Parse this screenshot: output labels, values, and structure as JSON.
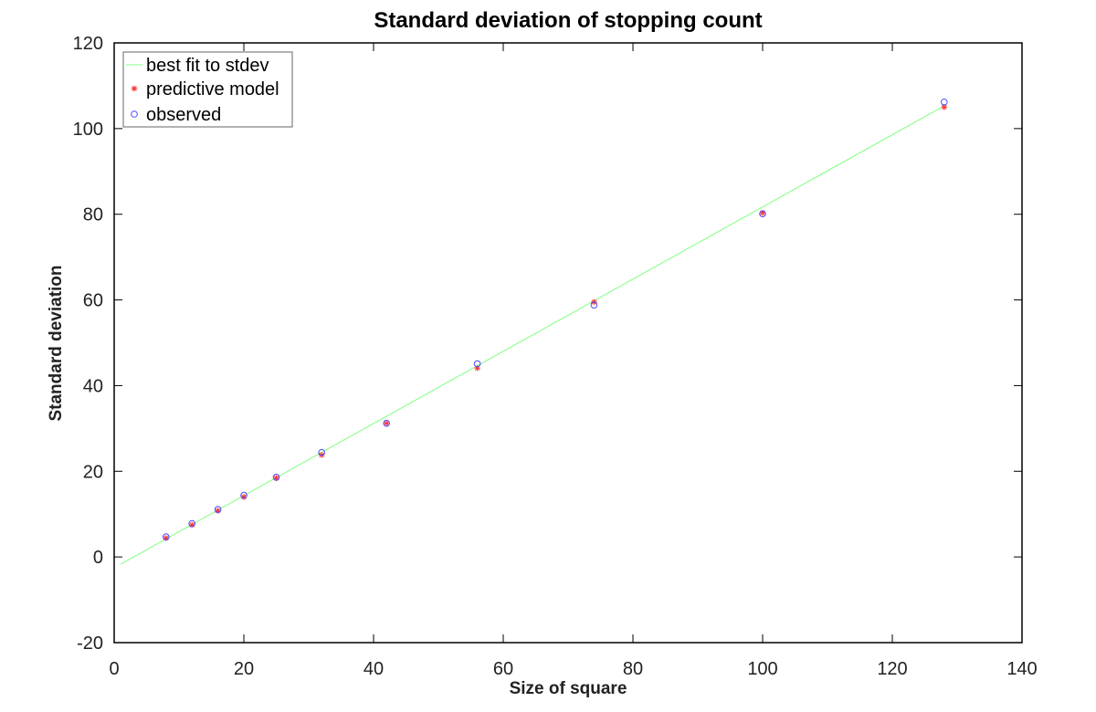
{
  "chart_data": {
    "type": "scatter",
    "title": "Standard deviation of stopping count",
    "xlabel": "Size of square",
    "ylabel": "Standard deviation",
    "xlim": [
      0,
      140
    ],
    "ylim": [
      -20,
      120
    ],
    "xticks": [
      0,
      20,
      40,
      60,
      80,
      100,
      120,
      140
    ],
    "yticks": [
      -20,
      0,
      20,
      40,
      60,
      80,
      100,
      120
    ],
    "grid": false,
    "legend_position": "top-left",
    "series": [
      {
        "name": "best fit to stdev",
        "kind": "line",
        "color": "#7fff7f",
        "x": [
          1,
          128
        ],
        "y": [
          -1.7,
          105.3
        ]
      },
      {
        "name": "predictive model",
        "kind": "marker-star",
        "color": "#ff3030",
        "x": [
          8,
          12,
          16,
          20,
          25,
          32,
          42,
          56,
          74,
          100,
          128
        ],
        "y": [
          4.4,
          7.5,
          10.8,
          14.0,
          18.4,
          23.8,
          31.2,
          44.1,
          59.5,
          80.3,
          105.0
        ]
      },
      {
        "name": "observed",
        "kind": "marker-circle",
        "color": "#4a4aff",
        "x": [
          8,
          12,
          16,
          20,
          25,
          32,
          42,
          56,
          74,
          100,
          128
        ],
        "y": [
          4.7,
          7.8,
          11.1,
          14.4,
          18.6,
          24.4,
          31.2,
          45.1,
          58.8,
          80.1,
          106.2
        ]
      }
    ]
  }
}
